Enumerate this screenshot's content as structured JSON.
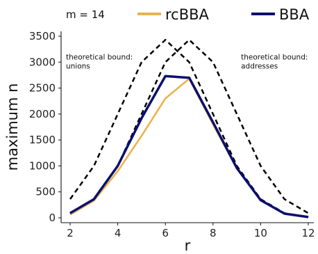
{
  "chart_data": {
    "type": "line",
    "xlabel": "r",
    "ylabel": "maximum n",
    "xlim": [
      2,
      12
    ],
    "ylim": [
      0,
      3500
    ],
    "xticks": [
      2,
      4,
      6,
      8,
      10,
      12
    ],
    "yticks": [
      0,
      500,
      1000,
      1500,
      2000,
      2500,
      3000,
      3500
    ],
    "grid": false,
    "legend_position": "top",
    "legend_prefix": "m = 14",
    "series": [
      {
        "name": "rcBBA",
        "color": "#E8B44F",
        "style": "solid",
        "x": [
          2,
          3,
          4,
          5,
          6,
          7,
          8,
          9,
          10,
          11,
          12
        ],
        "y": [
          60,
          330,
          900,
          1580,
          2300,
          2680,
          1800,
          950,
          340,
          80,
          15
        ]
      },
      {
        "name": "BBA",
        "color": "#0A0F6E",
        "style": "solid",
        "x": [
          2,
          3,
          4,
          5,
          6,
          7,
          8,
          9,
          10,
          11,
          12
        ],
        "y": [
          90,
          360,
          1000,
          1920,
          2730,
          2700,
          1840,
          960,
          340,
          80,
          15
        ]
      },
      {
        "color": "#000000",
        "style": "dashed",
        "x": [
          2,
          3,
          4,
          5,
          6,
          7,
          8,
          9,
          10,
          11,
          12
        ],
        "y": [
          360,
          1000,
          2000,
          3000,
          3430,
          3000,
          2000,
          1000,
          360,
          90,
          10
        ]
      },
      {
        "color": "#000000",
        "style": "dashed",
        "x": [
          2,
          3,
          4,
          5,
          6,
          7,
          8,
          9,
          10,
          11,
          12
        ],
        "y": [
          80,
          360,
          1000,
          2000,
          3000,
          3430,
          3000,
          2000,
          1000,
          360,
          90
        ]
      }
    ],
    "annotations": [
      {
        "text": [
          "theoretical bound:",
          "unions"
        ],
        "x": 2,
        "y": 3050,
        "anchor": "start"
      },
      {
        "text": [
          "theoretical bound:",
          "addresses"
        ],
        "x": 9.35,
        "y": 3050,
        "anchor": "start"
      }
    ]
  }
}
